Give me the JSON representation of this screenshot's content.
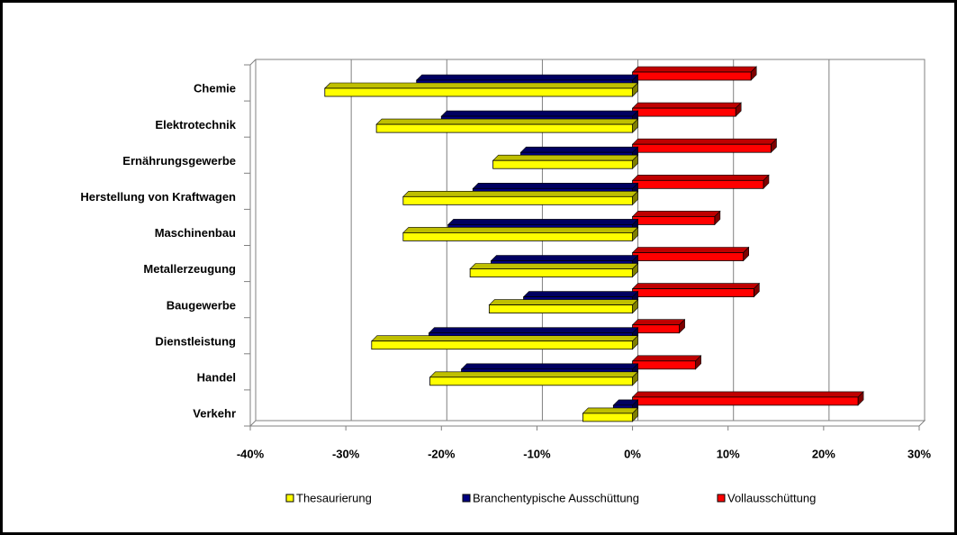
{
  "chart_data": {
    "type": "bar3d-horizontal",
    "categories": [
      "Chemie",
      "Elektrotechnik",
      "Ernährungsgewerbe",
      "Herstellung von Kraftwagen",
      "Maschinenbau",
      "Metallerzeugung",
      "Baugewerbe",
      "Dienstleistung",
      "Handel",
      "Verkehr"
    ],
    "series": [
      {
        "name": "Thesaurierung",
        "color": "#ffff00",
        "values": [
          -32.2,
          -26.8,
          -14.6,
          -24,
          -24,
          -17,
          -15,
          -27.3,
          -21.2,
          -5.2
        ]
      },
      {
        "name": "Branchentypische Ausschüttung",
        "color": "#000080",
        "values": [
          -22.6,
          -20,
          -11.7,
          -16.7,
          -19.3,
          -14.8,
          -11.4,
          -21.3,
          -17.9,
          -2
        ]
      },
      {
        "name": "Vollausschüttung",
        "color": "#ff0000",
        "values": [
          12.4,
          10.8,
          14.5,
          13.7,
          8.6,
          11.6,
          12.7,
          4.9,
          6.6,
          23.6
        ]
      }
    ],
    "xlim": [
      -40,
      30
    ],
    "xticks": [
      {
        "value": -40,
        "label": "-40%"
      },
      {
        "value": -30,
        "label": "-30%"
      },
      {
        "value": -20,
        "label": "-20%"
      },
      {
        "value": -10,
        "label": "-10%"
      },
      {
        "value": 0,
        "label": "0%"
      },
      {
        "value": 10,
        "label": "10%"
      },
      {
        "value": 20,
        "label": "20%"
      },
      {
        "value": 30,
        "label": "30%"
      }
    ],
    "grid": true,
    "legend": "bottom"
  }
}
